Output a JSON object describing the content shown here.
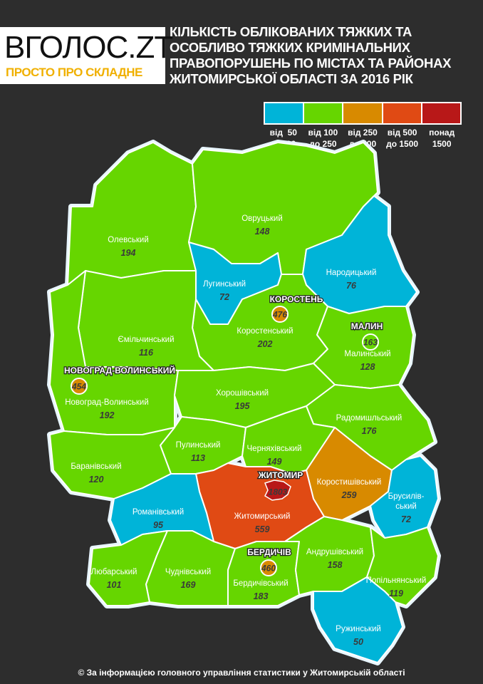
{
  "logo": {
    "main": "ВГОЛОС.ZT",
    "tagline": "ПРОСТО ПРО СКЛАДНЕ"
  },
  "title": [
    "КІЛЬКІСТЬ ОБЛІКОВАНИХ ТЯЖКИХ ТА",
    "ОСОБЛИВО ТЯЖКИХ КРИМІНАЛЬНИХ",
    "ПРАВОПОРУШЕНЬ ПО МІСТАХ ТА РАЙОНАХ",
    "ЖИТОМИРСЬКОЇ ОБЛАСТІ ЗА 2016 РІК"
  ],
  "legend": [
    {
      "label": "від  50\nдо100",
      "color": "#00b4d8"
    },
    {
      "label": "від 100\nдо 250",
      "color": "#66d600"
    },
    {
      "label": "від 250\nдо 500",
      "color": "#d88a00"
    },
    {
      "label": "від 500\nдо 1500",
      "color": "#e04a14"
    },
    {
      "label": "понад\n1500",
      "color": "#b81818"
    }
  ],
  "districts": [
    {
      "name": "Олевський",
      "value": "194",
      "color": "#66d600"
    },
    {
      "name": "Овруцький",
      "value": "148",
      "color": "#66d600"
    },
    {
      "name": "Лугинський",
      "value": "72",
      "color": "#00b4d8"
    },
    {
      "name": "Народицький",
      "value": "76",
      "color": "#00b4d8"
    },
    {
      "name": "Коростенський",
      "value": "202",
      "color": "#66d600"
    },
    {
      "name": "Малинський",
      "value": "128",
      "color": "#66d600"
    },
    {
      "name": "Ємільчинський",
      "value": "116",
      "color": "#66d600"
    },
    {
      "name": "Новоград-Волинський",
      "value": "192",
      "color": "#66d600"
    },
    {
      "name": "Хорошівський",
      "value": "195",
      "color": "#66d600"
    },
    {
      "name": "Радомишльський",
      "value": "176",
      "color": "#66d600"
    },
    {
      "name": "Пулинський",
      "value": "113",
      "color": "#66d600"
    },
    {
      "name": "Черняхівський",
      "value": "149",
      "color": "#66d600"
    },
    {
      "name": "Баранівський",
      "value": "120",
      "color": "#66d600"
    },
    {
      "name": "Коростишівський",
      "value": "259",
      "color": "#d88a00"
    },
    {
      "name": "Брусилів-\nський",
      "value": "72",
      "color": "#00b4d8"
    },
    {
      "name": "Житомирський",
      "value": "559",
      "color": "#e04a14"
    },
    {
      "name": "Романівський",
      "value": "95",
      "color": "#00b4d8"
    },
    {
      "name": "Любарський",
      "value": "101",
      "color": "#66d600"
    },
    {
      "name": "Чуднівський",
      "value": "169",
      "color": "#66d600"
    },
    {
      "name": "Бердичівський",
      "value": "183",
      "color": "#66d600"
    },
    {
      "name": "Андрушівський",
      "value": "158",
      "color": "#66d600"
    },
    {
      "name": "Попільнянський",
      "value": "119",
      "color": "#66d600"
    },
    {
      "name": "Ружинський",
      "value": "50",
      "color": "#00b4d8"
    }
  ],
  "cities": [
    {
      "name": "КОРОСТЕНЬ",
      "value": "476",
      "color": "#d88a00"
    },
    {
      "name": "МАЛИН",
      "value": "163",
      "color": "#66d600"
    },
    {
      "name": "НОВОГРАД-ВОЛИНСЬКИЙ",
      "value": "454",
      "color": "#d88a00"
    },
    {
      "name": "ЖИТОМИР",
      "value": "1803",
      "color": "#b81818"
    },
    {
      "name": "БЕРДИЧІВ",
      "value": "460",
      "color": "#d88a00"
    }
  ],
  "footer": "© За інформацією головного управління статистики у Житомирській області"
}
